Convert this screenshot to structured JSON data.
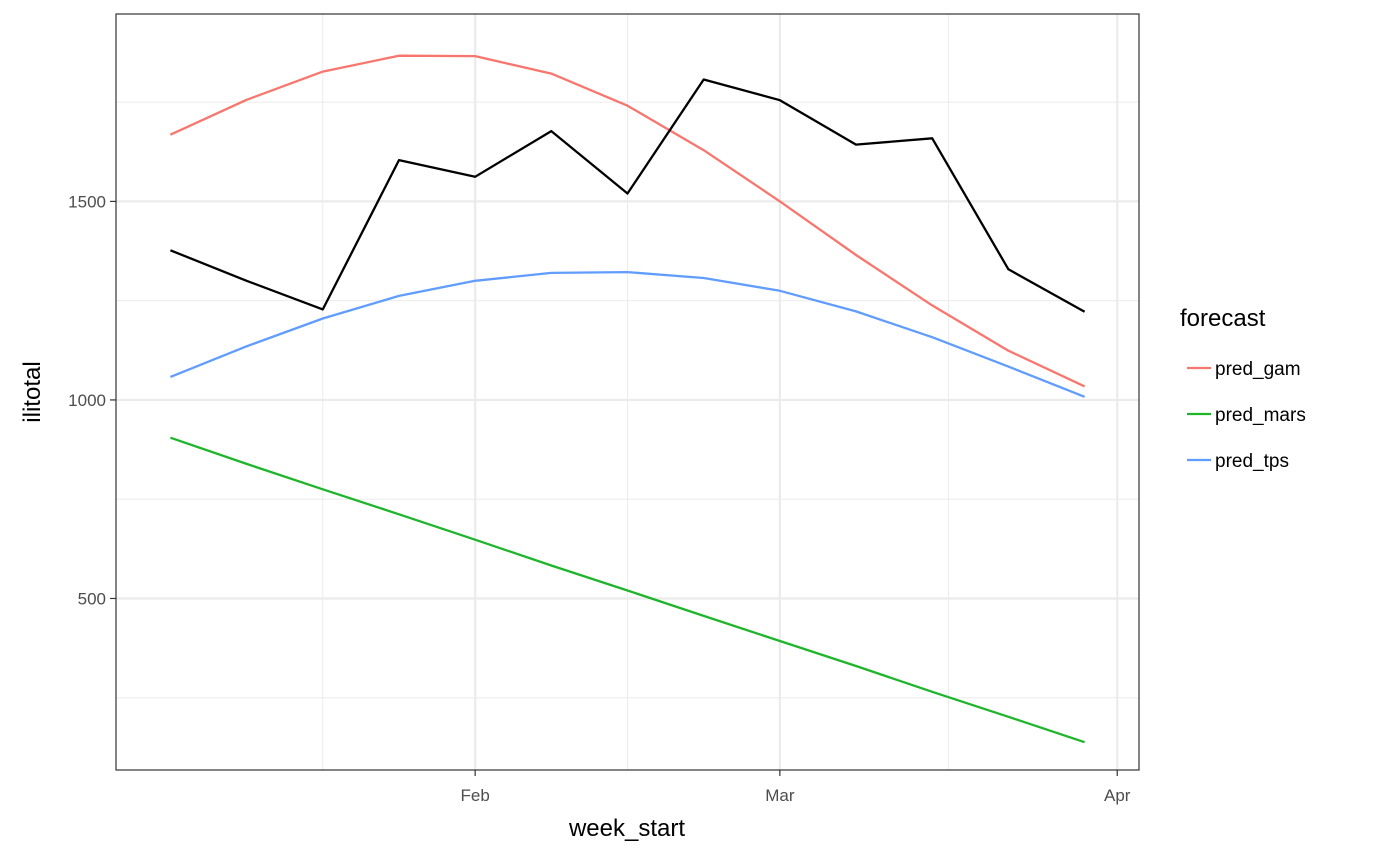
{
  "chart_data": {
    "type": "line",
    "title": "",
    "xlabel": "week_start",
    "ylabel": "ilitotal",
    "x": [
      "2015-01-04",
      "2015-01-11",
      "2015-01-18",
      "2015-01-25",
      "2015-02-01",
      "2015-02-08",
      "2015-02-15",
      "2015-02-22",
      "2015-03-01",
      "2015-03-08",
      "2015-03-15",
      "2015-03-22",
      "2015-03-29"
    ],
    "x_ticks": [
      {
        "label": "Feb",
        "date": "2015-02-01"
      },
      {
        "label": "Mar",
        "date": "2015-03-01"
      },
      {
        "label": "Apr",
        "date": "2015-04-01"
      }
    ],
    "y_ticks": [
      500,
      1000,
      1500
    ],
    "xlim": [
      "2014-12-30",
      "2015-04-03"
    ],
    "ylim": [
      68,
      1972
    ],
    "grid": true,
    "legend": {
      "title": "forecast",
      "position": "right"
    },
    "observed": {
      "color": "#000000",
      "values": [
        1377,
        1300,
        1228,
        1604,
        1562,
        1677,
        1520,
        1807,
        1755,
        1643,
        1659,
        1329,
        1222
      ]
    },
    "series": [
      {
        "name": "pred_gam",
        "color": "#F8766D",
        "values": [
          1668,
          1756,
          1827,
          1867,
          1866,
          1822,
          1741,
          1629,
          1500,
          1365,
          1238,
          1124,
          1034
        ]
      },
      {
        "name": "pred_mars",
        "color": "#1FB52B",
        "values": [
          905,
          839,
          775,
          712,
          648,
          583,
          520,
          456,
          393,
          330,
          265,
          202,
          138
        ]
      },
      {
        "name": "pred_tps",
        "color": "#619CFF",
        "values": [
          1058,
          1135,
          1205,
          1262,
          1300,
          1320,
          1322,
          1307,
          1275,
          1223,
          1158,
          1084,
          1008
        ]
      }
    ]
  }
}
